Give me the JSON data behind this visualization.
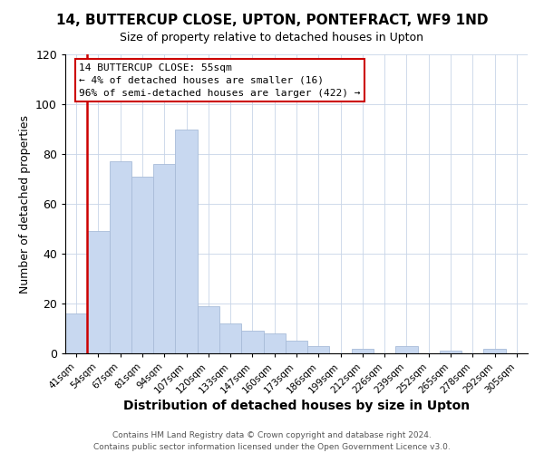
{
  "title": "14, BUTTERCUP CLOSE, UPTON, PONTEFRACT, WF9 1ND",
  "subtitle": "Size of property relative to detached houses in Upton",
  "xlabel": "Distribution of detached houses by size in Upton",
  "ylabel": "Number of detached properties",
  "bar_color": "#c8d8f0",
  "bar_edge_color": "#a8bcd8",
  "categories": [
    "41sqm",
    "54sqm",
    "67sqm",
    "81sqm",
    "94sqm",
    "107sqm",
    "120sqm",
    "133sqm",
    "147sqm",
    "160sqm",
    "173sqm",
    "186sqm",
    "199sqm",
    "212sqm",
    "226sqm",
    "239sqm",
    "252sqm",
    "265sqm",
    "278sqm",
    "292sqm",
    "305sqm"
  ],
  "values": [
    16,
    49,
    77,
    71,
    76,
    90,
    19,
    12,
    9,
    8,
    5,
    3,
    0,
    2,
    0,
    3,
    0,
    1,
    0,
    2,
    0
  ],
  "ylim": [
    0,
    120
  ],
  "yticks": [
    0,
    20,
    40,
    60,
    80,
    100,
    120
  ],
  "vline_color": "#cc0000",
  "annotation_line1": "14 BUTTERCUP CLOSE: 55sqm",
  "annotation_line2": "← 4% of detached houses are smaller (16)",
  "annotation_line3": "96% of semi-detached houses are larger (422) →",
  "annotation_box_color": "#ffffff",
  "annotation_box_edge": "#cc0000",
  "footer1": "Contains HM Land Registry data © Crown copyright and database right 2024.",
  "footer2": "Contains public sector information licensed under the Open Government Licence v3.0."
}
